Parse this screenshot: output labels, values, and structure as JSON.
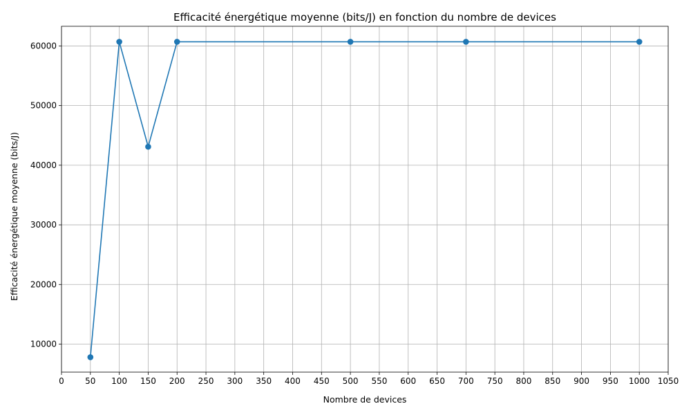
{
  "chart_data": {
    "type": "line",
    "title": "Efficacité énergétique moyenne (bits/J) en fonction du nombre de devices",
    "xlabel": "Nombre de devices",
    "ylabel": "Efficacité énergétique moyenne (bits/J)",
    "xlim": [
      0,
      1050
    ],
    "ylim": [
      5300,
      63300
    ],
    "xticks": [
      "0",
      "50",
      "100",
      "150",
      "200",
      "250",
      "300",
      "350",
      "400",
      "450",
      "500",
      "550",
      "600",
      "650",
      "700",
      "750",
      "800",
      "850",
      "900",
      "950",
      "1000",
      "1050"
    ],
    "yticks": [
      "10000",
      "20000",
      "30000",
      "40000",
      "50000",
      "60000"
    ],
    "grid": true,
    "series": [
      {
        "color": "#1f77b4",
        "x": [
          50,
          100,
          150,
          200,
          500,
          700,
          1000
        ],
        "y": [
          7800,
          60700,
          43100,
          60700,
          60700,
          60700,
          60700
        ]
      }
    ]
  }
}
